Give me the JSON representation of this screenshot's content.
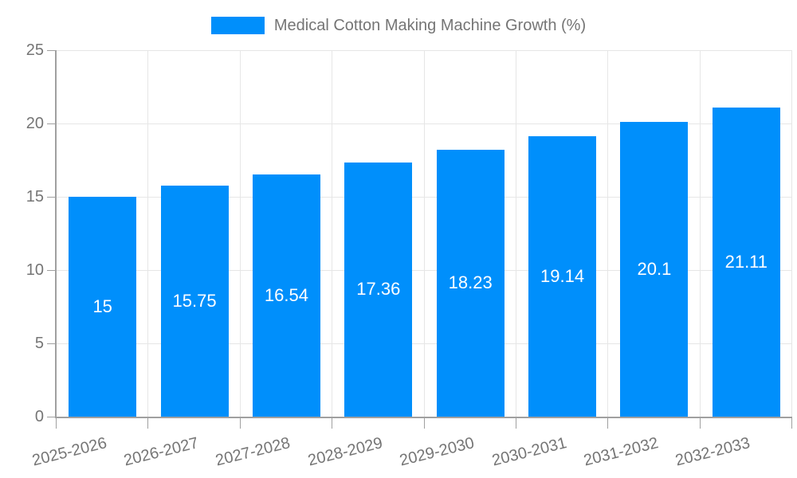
{
  "legend": {
    "label": "Medical Cotton Making Machine Growth (%)"
  },
  "chart_data": {
    "type": "bar",
    "title": "Medical Cotton Making Machine Growth (%)",
    "series_name": "Medical Cotton Making Machine Growth (%)",
    "categories": [
      "2025-2026",
      "2026-2027",
      "2027-2028",
      "2028-2029",
      "2029-2030",
      "2030-2031",
      "2031-2032",
      "2032-2033"
    ],
    "values": [
      15,
      15.75,
      16.54,
      17.36,
      18.23,
      19.14,
      20.1,
      21.11
    ],
    "value_labels": [
      "15",
      "15.75",
      "16.54",
      "17.36",
      "18.23",
      "19.14",
      "20.1",
      "21.11"
    ],
    "xlabel": "",
    "ylabel": "",
    "ylim": [
      0,
      25
    ],
    "yticks": [
      0,
      5,
      10,
      15,
      20,
      25
    ],
    "grid": true,
    "legend_position": "top",
    "bar_color": "#008FFB",
    "bar_label_color": "#ffffff",
    "axis_text_color": "#757575",
    "gridline_color": "#e6e6e6",
    "axis_line_color": "#a0a0a0"
  }
}
